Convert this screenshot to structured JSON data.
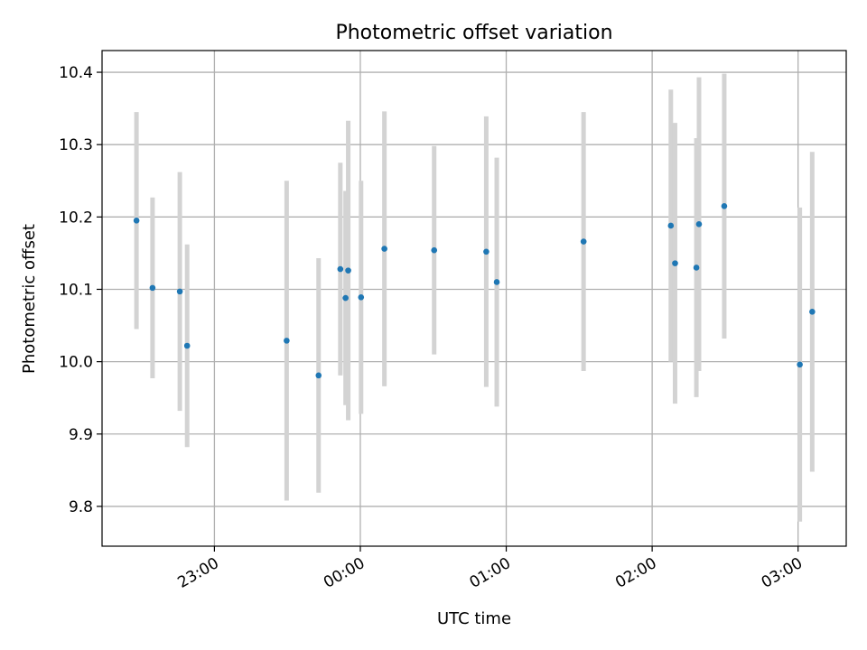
{
  "chart_data": {
    "type": "scatter",
    "title": "Photometric offset variation",
    "xlabel": "UTC time",
    "ylabel": "Photometric offset",
    "x_unit": "UTC hours (relative to 00:00)",
    "xlim": [
      -1.77,
      3.33
    ],
    "ylim": [
      9.745,
      10.43
    ],
    "grid": true,
    "point_color": "#1f77b4",
    "errorbar_color": "#d3d3d3",
    "xticks": [
      {
        "value": -1.0,
        "label": "23:00"
      },
      {
        "value": 0.0,
        "label": "00:00"
      },
      {
        "value": 1.0,
        "label": "01:00"
      },
      {
        "value": 2.0,
        "label": "02:00"
      },
      {
        "value": 3.0,
        "label": "03:00"
      }
    ],
    "yticks": [
      {
        "value": 9.8,
        "label": "9.8"
      },
      {
        "value": 9.9,
        "label": "9.9"
      },
      {
        "value": 10.0,
        "label": "10.0"
      },
      {
        "value": 10.1,
        "label": "10.1"
      },
      {
        "value": 10.2,
        "label": "10.2"
      },
      {
        "value": 10.3,
        "label": "10.3"
      },
      {
        "value": 10.4,
        "label": "10.4"
      }
    ],
    "points": [
      {
        "x": -1.534,
        "y": 10.195,
        "err": 0.15
      },
      {
        "x": -1.424,
        "y": 10.102,
        "err": 0.125
      },
      {
        "x": -1.237,
        "y": 10.097,
        "err": 0.165
      },
      {
        "x": -1.187,
        "y": 10.022,
        "err": 0.14
      },
      {
        "x": -0.505,
        "y": 10.029,
        "err": 0.221
      },
      {
        "x": -0.286,
        "y": 9.981,
        "err": 0.162
      },
      {
        "x": -0.137,
        "y": 10.128,
        "err": 0.147
      },
      {
        "x": -0.101,
        "y": 10.088,
        "err": 0.148
      },
      {
        "x": -0.083,
        "y": 10.126,
        "err": 0.207
      },
      {
        "x": 0.005,
        "y": 10.089,
        "err": 0.161
      },
      {
        "x": 0.165,
        "y": 10.156,
        "err": 0.19
      },
      {
        "x": 0.506,
        "y": 10.154,
        "err": 0.144
      },
      {
        "x": 0.863,
        "y": 10.152,
        "err": 0.187
      },
      {
        "x": 0.935,
        "y": 10.11,
        "err": 0.172
      },
      {
        "x": 1.53,
        "y": 10.166,
        "err": 0.179
      },
      {
        "x": 2.128,
        "y": 10.188,
        "err": 0.188
      },
      {
        "x": 2.157,
        "y": 10.136,
        "err": 0.194
      },
      {
        "x": 2.303,
        "y": 10.13,
        "err": 0.179
      },
      {
        "x": 2.321,
        "y": 10.19,
        "err": 0.203
      },
      {
        "x": 2.494,
        "y": 10.215,
        "err": 0.183
      },
      {
        "x": 3.012,
        "y": 9.996,
        "err": 0.217
      },
      {
        "x": 3.097,
        "y": 10.069,
        "err": 0.221
      }
    ]
  }
}
